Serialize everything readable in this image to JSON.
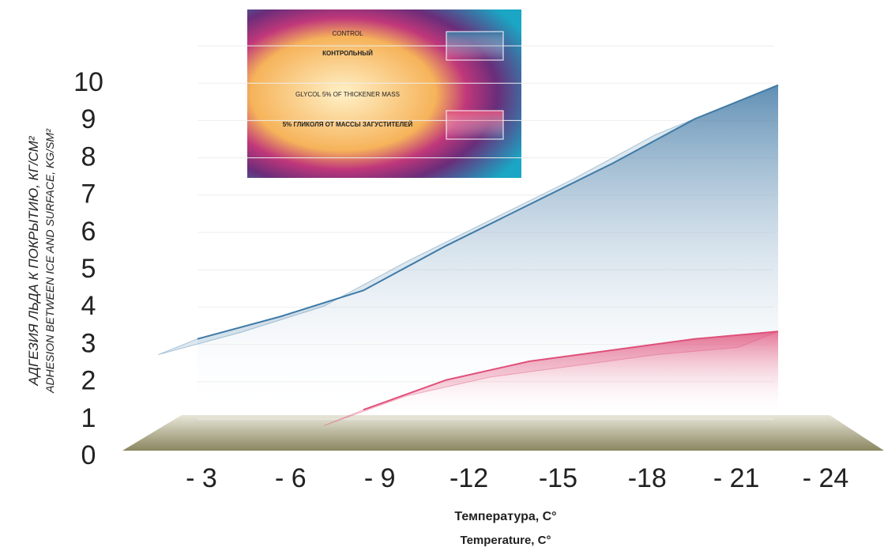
{
  "chart_data": {
    "type": "area3d",
    "y_label": "АДГЕЗИЯ ЛЬДА К ПОКРЫТИЮ, КГ/СМ²",
    "y_label_en": "ADHESION BETWEEN ICE AND SURFACE, KG/SM²",
    "x_label": "Температура, C°",
    "x_label_en": "Temperature, C°",
    "categories": [
      "- 3",
      "- 6",
      "- 9",
      "-12",
      "-15",
      "-18",
      "- 21",
      "- 24"
    ],
    "series": [
      {
        "name": "КОНТРОЛЬНЫЙ",
        "name_en": "CONTROL",
        "color": "#3f7aa6",
        "values": [
          3.1,
          3.7,
          4.4,
          5.6,
          6.7,
          7.8,
          9.0,
          9.9
        ]
      },
      {
        "name": "5% ГЛИКОЛЯ ОТ МАССЫ ЗАГУСТИТЕЛЕЙ",
        "name_en": "GLYCOL 5% OF THICKENER MASS",
        "color": "#e0507a",
        "values": [
          null,
          null,
          1.2,
          2.0,
          2.5,
          2.8,
          3.1,
          3.3
        ]
      }
    ],
    "ylim": [
      0,
      10
    ],
    "yticks": [
      0,
      1,
      2,
      3,
      4,
      5,
      6,
      7,
      8,
      9,
      10
    ]
  }
}
